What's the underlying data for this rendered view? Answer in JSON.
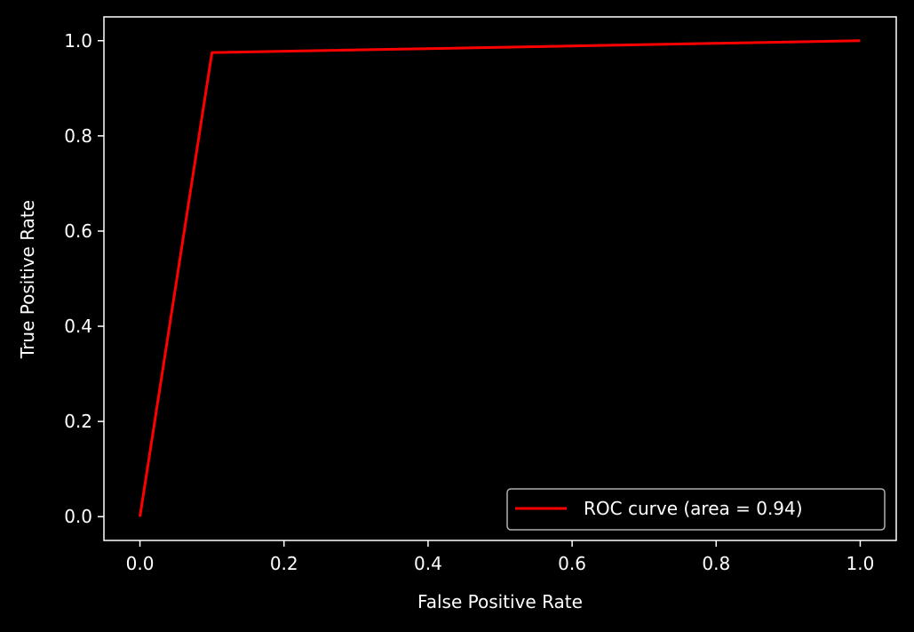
{
  "chart_data": {
    "type": "line",
    "title": "",
    "xlabel": "False Positive Rate",
    "ylabel": "True Positive Rate",
    "xlim": [
      -0.05,
      1.05
    ],
    "ylim": [
      -0.05,
      1.05
    ],
    "xticks": [
      0.0,
      0.2,
      0.4,
      0.6,
      0.8,
      1.0
    ],
    "yticks": [
      0.0,
      0.2,
      0.4,
      0.6,
      0.8,
      1.0
    ],
    "xtick_labels": [
      "0.0",
      "0.2",
      "0.4",
      "0.6",
      "0.8",
      "1.0"
    ],
    "ytick_labels": [
      "0.0",
      "0.2",
      "0.4",
      "0.6",
      "0.8",
      "1.0"
    ],
    "grid": false,
    "legend_position": "lower-right",
    "series": [
      {
        "name": "ROC curve (area = 0.94)",
        "color": "#ff0000",
        "x": [
          0.0,
          0.1,
          1.0
        ],
        "y": [
          0.0,
          0.975,
          1.0
        ]
      }
    ],
    "colors": {
      "background": "#000000",
      "axes": "#ffffff",
      "text": "#ffffff",
      "legend_border": "#b0b0b0"
    }
  }
}
